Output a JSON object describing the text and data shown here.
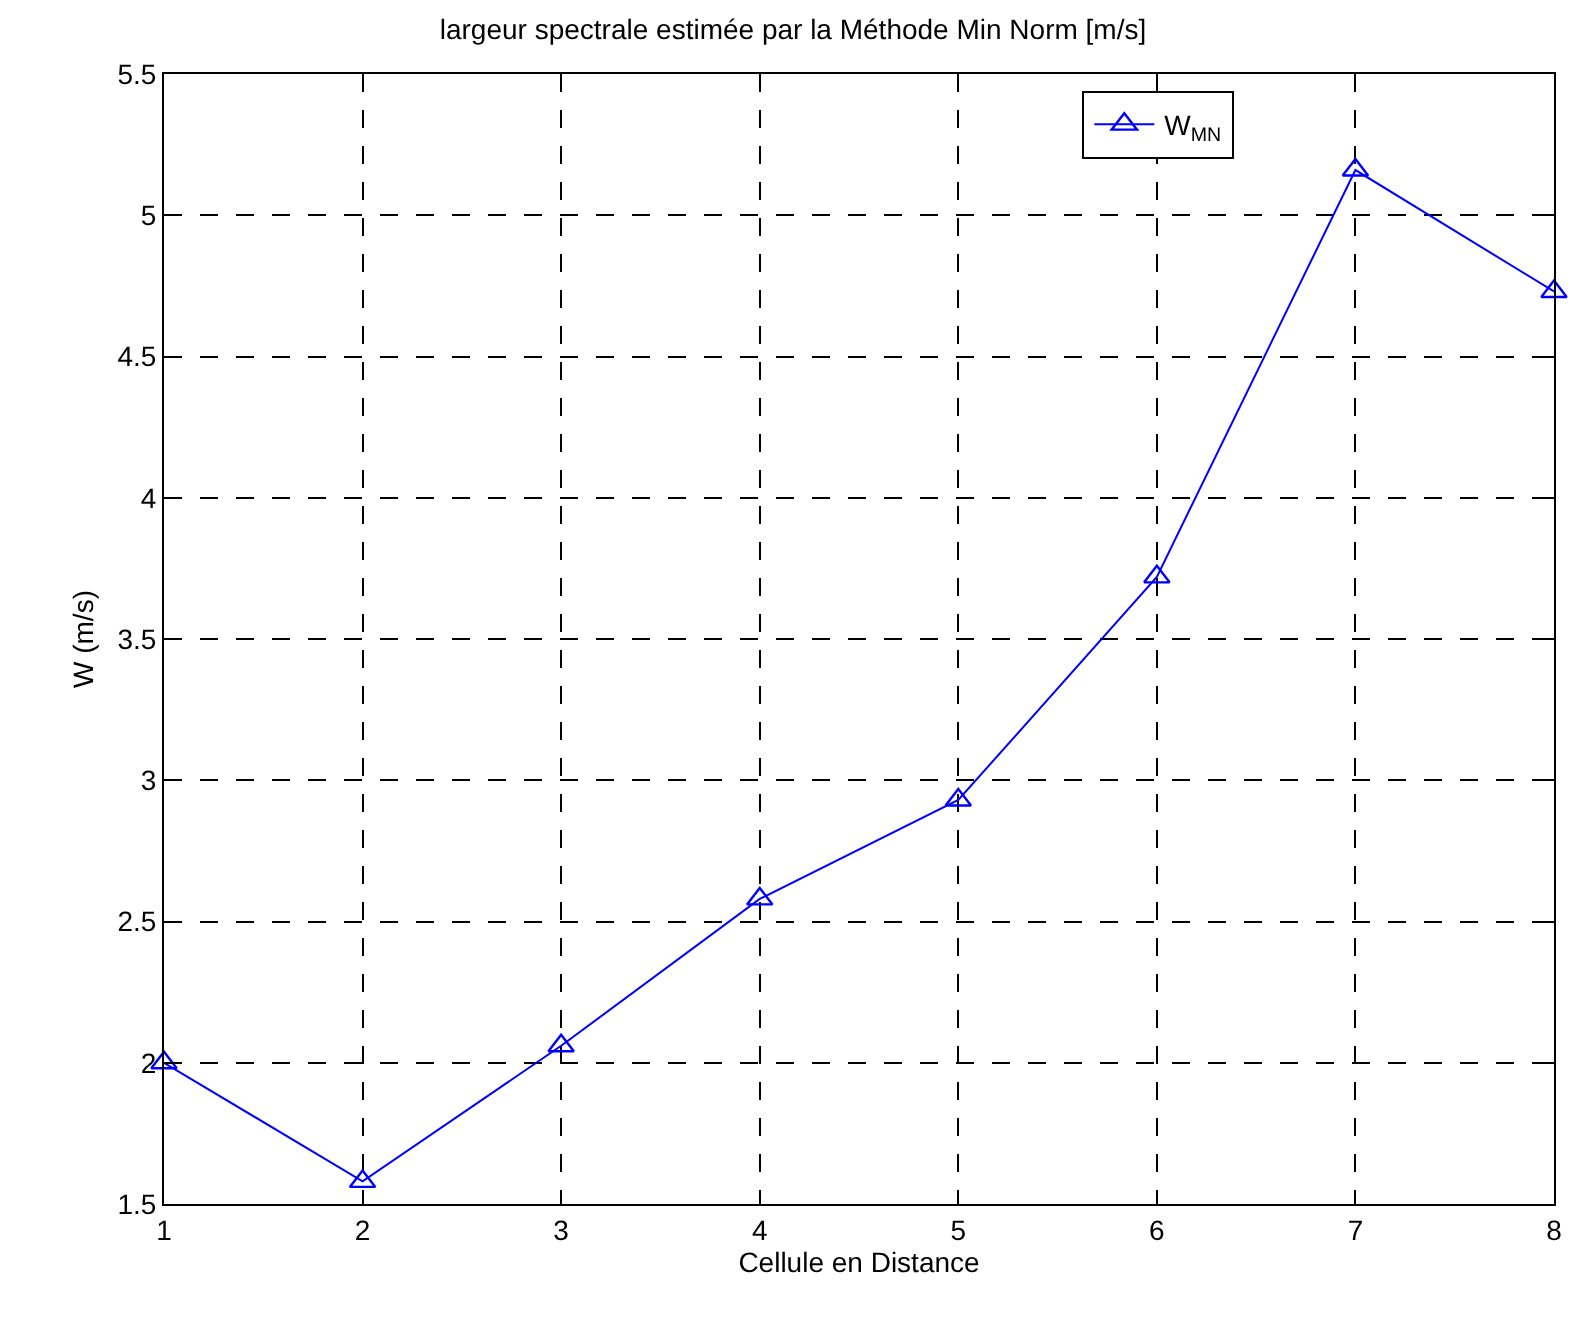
{
  "chart_data": {
    "type": "line",
    "title": "largeur spectrale estimée par la Méthode Min Norm [m/s]",
    "xlabel": "Cellule en Distance",
    "ylabel": "W (m/s)",
    "x": [
      1,
      2,
      3,
      4,
      5,
      6,
      7,
      8
    ],
    "series": [
      {
        "name": "W$_{MN}$",
        "color": "#0000ff",
        "values": [
          2.0,
          1.58,
          2.06,
          2.58,
          2.93,
          3.72,
          5.16,
          4.73
        ]
      }
    ],
    "xlim": [
      1,
      8
    ],
    "xticks": [
      1,
      2,
      3,
      4,
      5,
      6,
      7,
      8
    ],
    "ylim": [
      1.5,
      5.5
    ],
    "yticks": [
      1.5,
      2,
      2.5,
      3,
      3.5,
      4,
      4.5,
      5,
      5.5
    ],
    "grid": true,
    "legend": "top right",
    "marker": "triangle",
    "line_style": "solid"
  }
}
